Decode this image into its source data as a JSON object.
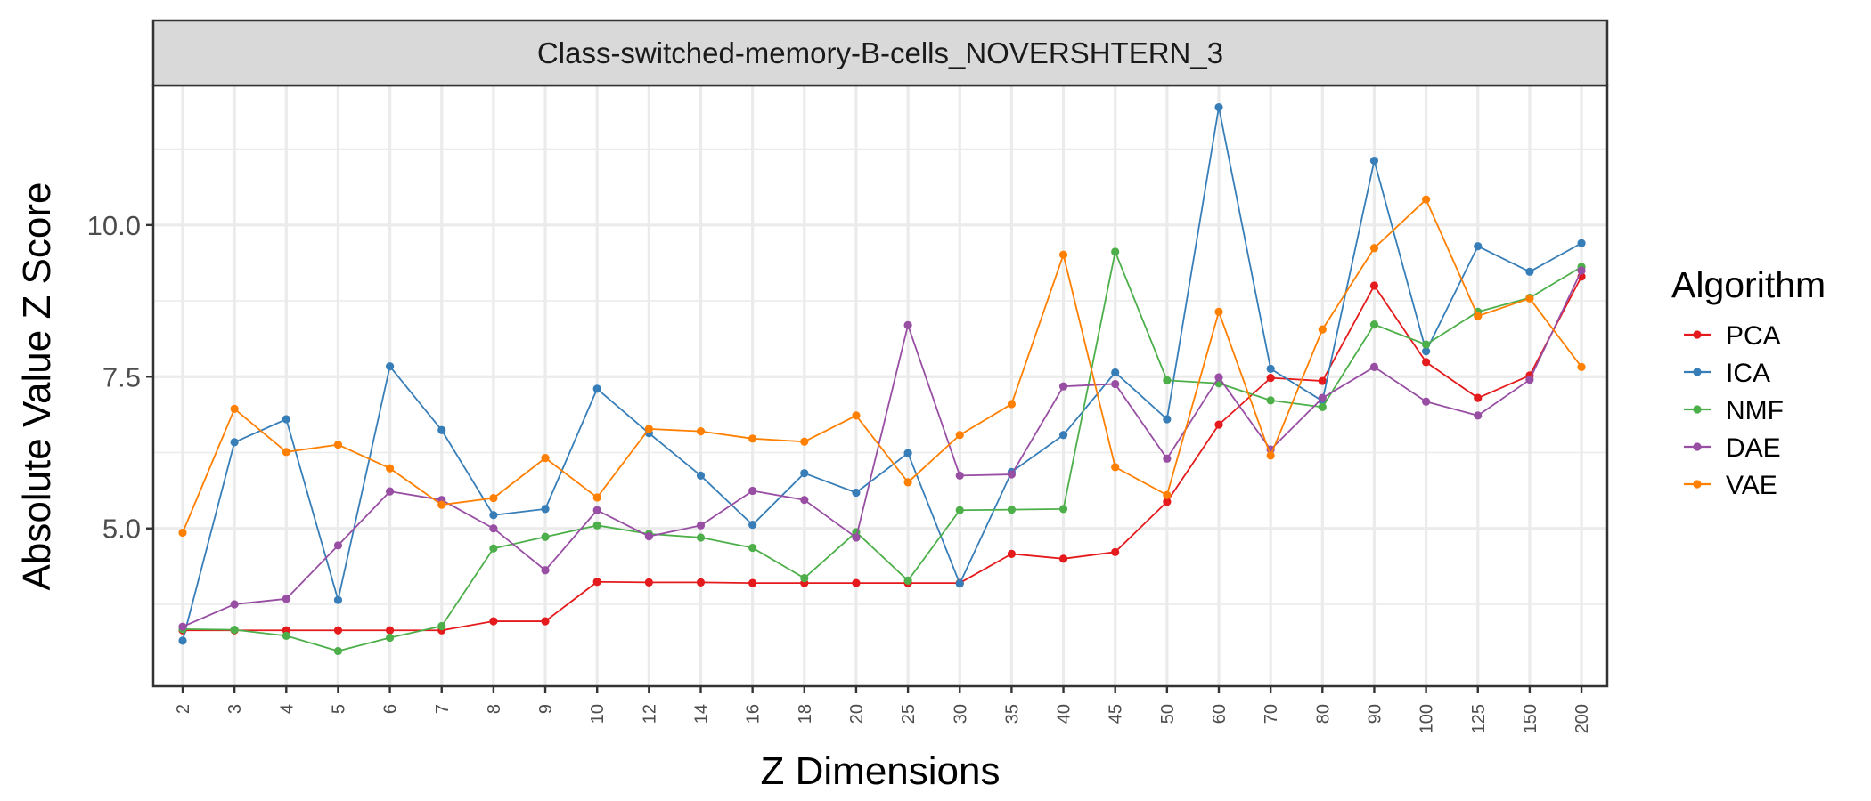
{
  "chart_data": {
    "type": "line",
    "title": "Class-switched-memory-B-cells_NOVERSHTERN_3",
    "xlabel": "Z Dimensions",
    "ylabel": "Absolute Value Z Score",
    "categories": [
      "2",
      "3",
      "4",
      "5",
      "6",
      "7",
      "8",
      "9",
      "10",
      "12",
      "14",
      "16",
      "18",
      "20",
      "25",
      "30",
      "35",
      "40",
      "45",
      "50",
      "60",
      "70",
      "80",
      "90",
      "100",
      "125",
      "150",
      "200"
    ],
    "ylim": [
      2.4,
      12.3
    ],
    "yticks": [
      5.0,
      7.5,
      10.0
    ],
    "ytick_labels": [
      "5.0",
      "7.5",
      "10.0"
    ],
    "grid": true,
    "legend": {
      "title": "Algorithm",
      "position": "right"
    },
    "series": [
      {
        "name": "PCA",
        "color": "#e41a1c",
        "values": [
          3.32,
          3.32,
          3.32,
          3.32,
          3.32,
          3.32,
          3.47,
          3.47,
          4.12,
          4.11,
          4.11,
          4.1,
          4.1,
          4.1,
          4.1,
          4.1,
          4.58,
          4.5,
          4.61,
          5.44,
          6.71,
          7.48,
          7.43,
          9.0,
          7.74,
          7.15,
          7.52,
          9.15
        ]
      },
      {
        "name": "ICA",
        "color": "#377eb8",
        "values": [
          3.15,
          6.42,
          6.8,
          3.82,
          7.67,
          6.62,
          5.22,
          5.32,
          7.3,
          6.57,
          5.87,
          5.06,
          5.91,
          5.59,
          6.24,
          4.09,
          5.93,
          6.54,
          7.57,
          6.8,
          11.94,
          7.63,
          7.1,
          11.06,
          7.92,
          9.65,
          9.23,
          9.7
        ]
      },
      {
        "name": "NMF",
        "color": "#4daf4a",
        "values": [
          3.34,
          3.33,
          3.23,
          2.98,
          3.2,
          3.39,
          4.67,
          4.86,
          5.05,
          4.91,
          4.85,
          4.68,
          4.18,
          4.94,
          4.14,
          5.3,
          5.31,
          5.32,
          9.56,
          7.44,
          7.39,
          7.11,
          7.0,
          8.36,
          8.03,
          8.57,
          8.8,
          9.31
        ]
      },
      {
        "name": "DAE",
        "color": "#984ea3",
        "values": [
          3.38,
          3.75,
          3.84,
          4.72,
          5.61,
          5.47,
          5.0,
          4.31,
          5.3,
          4.87,
          5.05,
          5.62,
          5.47,
          4.85,
          8.35,
          5.87,
          5.89,
          7.34,
          7.38,
          6.15,
          7.49,
          6.3,
          7.15,
          7.66,
          7.09,
          6.86,
          7.45,
          9.25
        ]
      },
      {
        "name": "VAE",
        "color": "#ff7f00",
        "values": [
          4.93,
          6.97,
          6.26,
          6.38,
          5.99,
          5.39,
          5.5,
          6.16,
          5.51,
          6.64,
          6.6,
          6.48,
          6.43,
          6.86,
          5.76,
          6.54,
          7.05,
          9.51,
          6.01,
          5.55,
          8.57,
          6.2,
          8.28,
          9.62,
          10.42,
          8.5,
          8.79,
          7.66
        ]
      }
    ]
  }
}
